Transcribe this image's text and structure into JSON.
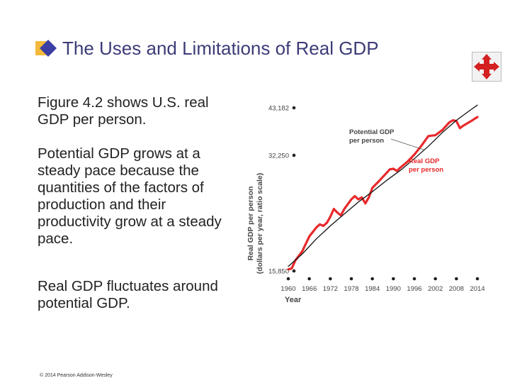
{
  "slide": {
    "title": "The Uses and Limitations of Real GDP",
    "paragraphs": [
      "Figure 4.2 shows U.S. real GDP per person.",
      "Potential GDP grows at a steady pace because the quantities of the factors of production and their productivity grow at a steady pace.",
      "Real GDP fluctuates around potential GDP."
    ],
    "copyright": "© 2014 Pearson Addison-Wesley",
    "nav_icon": "move-arrows-icon",
    "logo_icon": "diamond-logo-icon"
  },
  "colors": {
    "title": "#3c3c78",
    "real_gdp": "#e8282a",
    "potential_gdp": "#111111",
    "nav_icon": "#d42020"
  },
  "chart_data": {
    "type": "line",
    "ylabel": "Real GDP per person (dollars per year, ratio scale)",
    "xlabel": "Year",
    "x_ticks": [
      1960,
      1966,
      1972,
      1978,
      1984,
      1990,
      1996,
      2002,
      2008,
      2014
    ],
    "y_ticks": [
      15850,
      32250,
      43182
    ],
    "y_tick_labels": [
      "15,850",
      "32,250",
      "43,182"
    ],
    "y_scale": "log",
    "xlim": [
      1960,
      2014
    ],
    "ylim": [
      15850,
      43182
    ],
    "series": [
      {
        "name": "Potential GDP per person",
        "color": "#111111",
        "x": [
          1960,
          1964,
          1968,
          1972,
          1976,
          1980,
          1984,
          1988,
          1992,
          1996,
          2000,
          2004,
          2008,
          2012,
          2014
        ],
        "y": [
          16300,
          17600,
          19300,
          20900,
          22500,
          24200,
          25800,
          27600,
          29400,
          31600,
          34100,
          37100,
          40000,
          42600,
          43900
        ]
      },
      {
        "name": "Real GDP per person",
        "color": "#e8282a",
        "x": [
          1960,
          1961,
          1962,
          1964,
          1966,
          1968,
          1969,
          1970,
          1971,
          1972,
          1973,
          1974,
          1975,
          1976,
          1978,
          1979,
          1980,
          1981,
          1982,
          1983,
          1984,
          1986,
          1988,
          1989,
          1990,
          1991,
          1992,
          1994,
          1996,
          1998,
          2000,
          2001,
          2002,
          2004,
          2006,
          2007,
          2008,
          2009,
          2010,
          2012,
          2014
        ],
        "y": [
          16000,
          16100,
          16900,
          17900,
          19600,
          20700,
          21100,
          20900,
          21300,
          22100,
          23200,
          22700,
          22300,
          23200,
          24600,
          25100,
          24600,
          24900,
          24000,
          24900,
          26400,
          27600,
          28900,
          29600,
          29700,
          29300,
          29900,
          31000,
          32400,
          34200,
          36300,
          36400,
          36500,
          37700,
          39500,
          40000,
          39800,
          38100,
          38700,
          39700,
          40800
        ]
      }
    ],
    "annotations": [
      {
        "text": "Potential GDP per person",
        "series": "Potential GDP per person",
        "x": 1999,
        "y": 33300
      },
      {
        "text": "Real GDP per person",
        "series": "Real GDP per person",
        "x": 2003,
        "y": 36500
      }
    ]
  }
}
